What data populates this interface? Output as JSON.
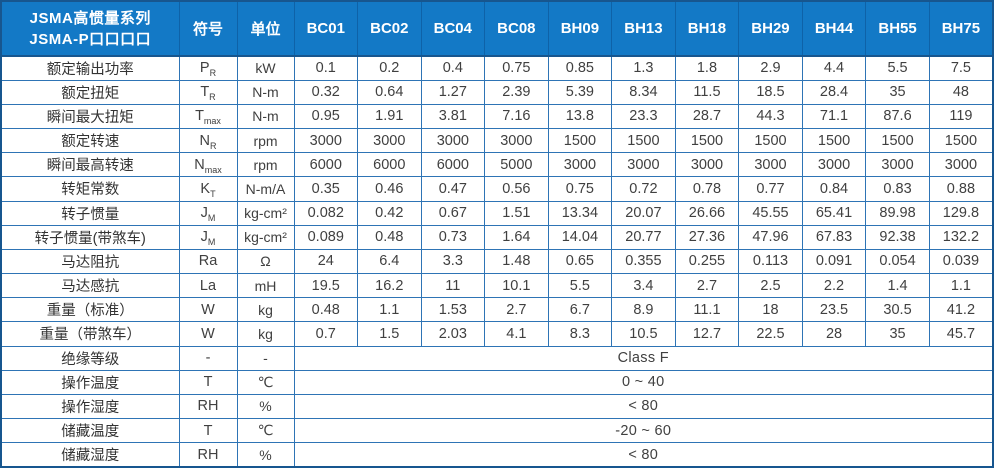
{
  "table": {
    "title_line1": "JSMA高惯量系列",
    "title_line2": "JSMA-P口口口口",
    "col_symbol": "符号",
    "col_unit": "单位",
    "models": [
      "BC01",
      "BC02",
      "BC04",
      "BC08",
      "BH09",
      "BH13",
      "BH18",
      "BH29",
      "BH44",
      "BH55",
      "BH75"
    ],
    "rows": [
      {
        "label": "额定输出功率",
        "sym": "P",
        "sub": "R",
        "unit": "kW",
        "values": [
          "0.1",
          "0.2",
          "0.4",
          "0.75",
          "0.85",
          "1.3",
          "1.8",
          "2.9",
          "4.4",
          "5.5",
          "7.5"
        ]
      },
      {
        "label": "额定扭矩",
        "sym": "T",
        "sub": "R",
        "unit": "N-m",
        "values": [
          "0.32",
          "0.64",
          "1.27",
          "2.39",
          "5.39",
          "8.34",
          "11.5",
          "18.5",
          "28.4",
          "35",
          "48"
        ]
      },
      {
        "label": "瞬间最大扭矩",
        "sym": "T",
        "sub": "max",
        "unit": "N-m",
        "values": [
          "0.95",
          "1.91",
          "3.81",
          "7.16",
          "13.8",
          "23.3",
          "28.7",
          "44.3",
          "71.1",
          "87.6",
          "119"
        ]
      },
      {
        "label": "额定转速",
        "sym": "N",
        "sub": "R",
        "unit": "rpm",
        "values": [
          "3000",
          "3000",
          "3000",
          "3000",
          "1500",
          "1500",
          "1500",
          "1500",
          "1500",
          "1500",
          "1500"
        ]
      },
      {
        "label": "瞬间最高转速",
        "sym": "N",
        "sub": "max",
        "unit": "rpm",
        "values": [
          "6000",
          "6000",
          "6000",
          "5000",
          "3000",
          "3000",
          "3000",
          "3000",
          "3000",
          "3000",
          "3000"
        ]
      },
      {
        "label": "转矩常数",
        "sym": "K",
        "sub": "T",
        "unit": "N-m/A",
        "values": [
          "0.35",
          "0.46",
          "0.47",
          "0.56",
          "0.75",
          "0.72",
          "0.78",
          "0.77",
          "0.84",
          "0.83",
          "0.88"
        ]
      },
      {
        "label": "转子惯量",
        "sym": "J",
        "sub": "M",
        "unit": "kg-cm²",
        "values": [
          "0.082",
          "0.42",
          "0.67",
          "1.51",
          "13.34",
          "20.07",
          "26.66",
          "45.55",
          "65.41",
          "89.98",
          "129.8"
        ]
      },
      {
        "label": "转子惯量(带煞车)",
        "sym": "J",
        "sub": "M",
        "unit": "kg-cm²",
        "values": [
          "0.089",
          "0.48",
          "0.73",
          "1.64",
          "14.04",
          "20.77",
          "27.36",
          "47.96",
          "67.83",
          "92.38",
          "132.2"
        ]
      },
      {
        "label": "马达阻抗",
        "sym": "Ra",
        "sub": "",
        "unit": "Ω",
        "values": [
          "24",
          "6.4",
          "3.3",
          "1.48",
          "0.65",
          "0.355",
          "0.255",
          "0.113",
          "0.091",
          "0.054",
          "0.039"
        ]
      },
      {
        "label": "马达感抗",
        "sym": "La",
        "sub": "",
        "unit": "mH",
        "values": [
          "19.5",
          "16.2",
          "11",
          "10.1",
          "5.5",
          "3.4",
          "2.7",
          "2.5",
          "2.2",
          "1.4",
          "1.1"
        ]
      },
      {
        "label": "重量（标准）",
        "sym": "W",
        "sub": "",
        "unit": "kg",
        "values": [
          "0.48",
          "1.1",
          "1.53",
          "2.7",
          "6.7",
          "8.9",
          "11.1",
          "18",
          "23.5",
          "30.5",
          "41.2"
        ]
      },
      {
        "label": "重量（带煞车）",
        "sym": "W",
        "sub": "",
        "unit": "kg",
        "values": [
          "0.7",
          "1.5",
          "2.03",
          "4.1",
          "8.3",
          "10.5",
          "12.7",
          "22.5",
          "28",
          "35",
          "45.7"
        ]
      },
      {
        "label": "绝缘等级",
        "sym": "-",
        "sub": "",
        "unit": "-",
        "span_value": "Class F"
      },
      {
        "label": "操作温度",
        "sym": "T",
        "sub": "",
        "unit": "℃",
        "span_value": "0 ~ 40"
      },
      {
        "label": "操作湿度",
        "sym": "RH",
        "sub": "",
        "unit": "%",
        "span_value": "< 80"
      },
      {
        "label": "储藏温度",
        "sym": "T",
        "sub": "",
        "unit": "℃",
        "span_value": "-20 ~ 60"
      },
      {
        "label": "储藏湿度",
        "sym": "RH",
        "sub": "",
        "unit": "%",
        "span_value": "< 80"
      }
    ]
  },
  "colors": {
    "header_bg": "#1379C6",
    "header_text": "#FFFFFF",
    "header_sep": "#0E62A8",
    "border": "#2E74B5",
    "outer_border": "#17568F",
    "text": "#404040"
  }
}
